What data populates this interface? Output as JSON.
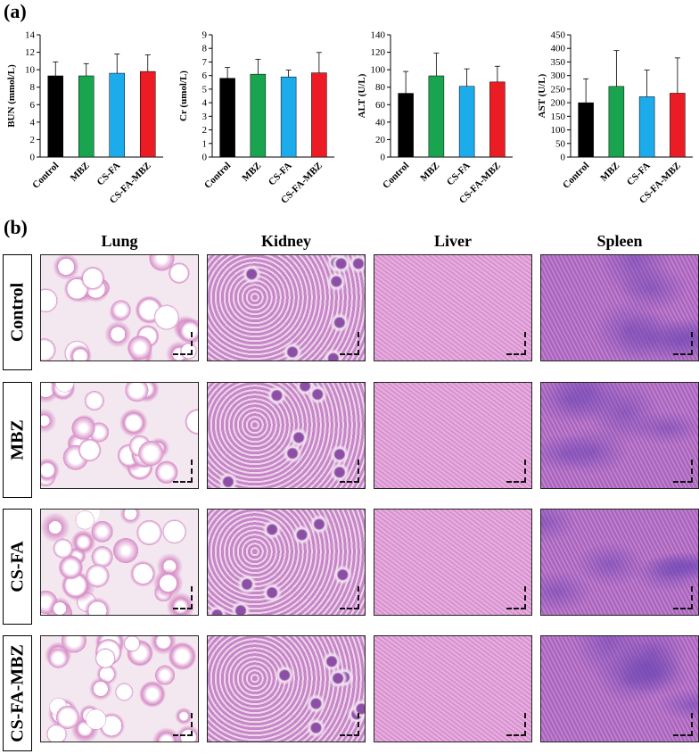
{
  "panel_a_label": "(a)",
  "panel_b_label": "(b)",
  "chart_data": [
    {
      "type": "bar",
      "ylabel": "BUN (mmol/L)",
      "categories": [
        "Control",
        "MBZ",
        "CS-FA",
        "CS-FA-MBZ"
      ],
      "values": [
        9.3,
        9.3,
        9.6,
        9.8
      ],
      "errors": [
        1.6,
        1.4,
        2.2,
        1.9
      ],
      "ylim": [
        0,
        14
      ],
      "yticks": [
        0,
        2,
        4,
        6,
        8,
        10,
        12,
        14
      ],
      "colors": [
        "#000000",
        "#19a54f",
        "#1cabeb",
        "#ec1c24"
      ]
    },
    {
      "type": "bar",
      "ylabel": "Cr (umol/L)",
      "categories": [
        "Control",
        "MBZ",
        "CS-FA",
        "CS-FA-MBZ"
      ],
      "values": [
        5.8,
        6.1,
        5.9,
        6.2
      ],
      "errors": [
        0.8,
        1.1,
        0.5,
        1.5
      ],
      "ylim": [
        0,
        9
      ],
      "yticks": [
        0,
        1,
        2,
        3,
        4,
        5,
        6,
        7,
        8,
        9
      ],
      "colors": [
        "#000000",
        "#19a54f",
        "#1cabeb",
        "#ec1c24"
      ]
    },
    {
      "type": "bar",
      "ylabel": "ALT (U/L)",
      "categories": [
        "Control",
        "MBZ",
        "CS-FA",
        "CS-FA-MBZ"
      ],
      "values": [
        73,
        93,
        81,
        86
      ],
      "errors": [
        25,
        26,
        20,
        18
      ],
      "ylim": [
        0,
        140
      ],
      "yticks": [
        0,
        20,
        40,
        60,
        80,
        100,
        120,
        140
      ],
      "colors": [
        "#000000",
        "#19a54f",
        "#1cabeb",
        "#ec1c24"
      ]
    },
    {
      "type": "bar",
      "ylabel": "AST (U/L)",
      "categories": [
        "Control",
        "MBZ",
        "CS-FA",
        "CS-FA-MBZ"
      ],
      "values": [
        200,
        260,
        222,
        235
      ],
      "errors": [
        88,
        132,
        98,
        130
      ],
      "ylim": [
        0,
        450
      ],
      "yticks": [
        0,
        50,
        100,
        150,
        200,
        250,
        300,
        350,
        400,
        450
      ],
      "colors": [
        "#000000",
        "#19a54f",
        "#1cabeb",
        "#ec1c24"
      ]
    }
  ],
  "histology": {
    "columns": [
      "Lung",
      "Kidney",
      "Liver",
      "Spleen"
    ],
    "rows": [
      "Control",
      "MBZ",
      "CS-FA",
      "CS-FA-MBZ"
    ],
    "tissue_colors": {
      "Lung": "#f3e8f0",
      "Kidney": "#c98bc9",
      "Liver": "#df9fd6",
      "Spleen": "#b877c8"
    },
    "tile_variants": [
      [
        "Lung",
        "Kidney",
        "Liver",
        "Spleen"
      ],
      [
        "Lung",
        "Kidney",
        "Liver",
        "Spleen"
      ],
      [
        "Lung",
        "Kidney",
        "Liver",
        "Spleen"
      ],
      [
        "Lung",
        "Kidney",
        "Liver",
        "Spleen"
      ]
    ]
  }
}
